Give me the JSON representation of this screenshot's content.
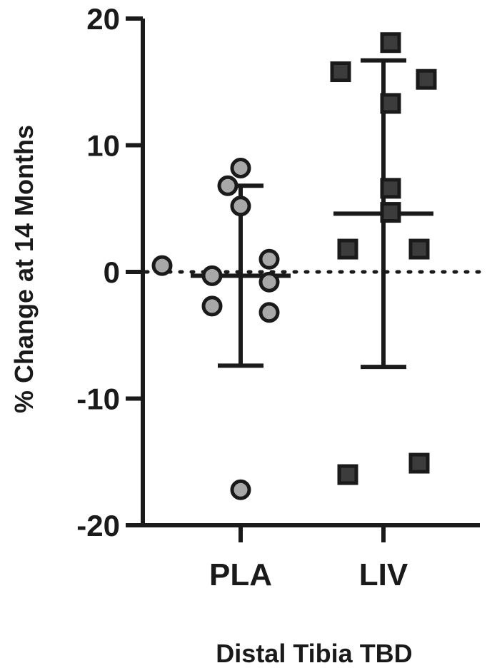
{
  "chart_data": {
    "type": "scatter",
    "xlabel": "Distal Tibia TBD",
    "ylabel": "% Change at 14 Months",
    "ylim": [
      -20,
      20
    ],
    "yticks": [
      20,
      10,
      0,
      -10,
      -20
    ],
    "ytick_labels": [
      "20",
      "10",
      "0",
      "-10",
      "-20"
    ],
    "categories": [
      "PLA",
      "LIV"
    ],
    "reference_line": {
      "y": 0,
      "style": "dotted"
    },
    "series": [
      {
        "category": "PLA",
        "marker": "circle",
        "color": "#a8a8a8",
        "mean": -0.3,
        "sd_upper": 6.8,
        "sd_lower": -7.4,
        "points": [
          {
            "offset": 0.0,
            "y": 8.2
          },
          {
            "offset": -0.09,
            "y": 6.8
          },
          {
            "offset": 0.0,
            "y": 5.2
          },
          {
            "offset": -0.55,
            "y": 0.5
          },
          {
            "offset": 0.2,
            "y": 1.0
          },
          {
            "offset": -0.2,
            "y": -0.3
          },
          {
            "offset": 0.2,
            "y": -0.8
          },
          {
            "offset": -0.2,
            "y": -2.7
          },
          {
            "offset": 0.2,
            "y": -3.2
          },
          {
            "offset": 0.0,
            "y": -17.2
          }
        ]
      },
      {
        "category": "LIV",
        "marker": "square",
        "color": "#3c3c3c",
        "mean": 4.6,
        "sd_upper": 16.7,
        "sd_lower": -7.5,
        "points": [
          {
            "offset": 0.05,
            "y": 18.1
          },
          {
            "offset": -0.3,
            "y": 15.8
          },
          {
            "offset": 0.3,
            "y": 15.2
          },
          {
            "offset": 0.05,
            "y": 13.3
          },
          {
            "offset": 0.05,
            "y": 6.6
          },
          {
            "offset": 0.05,
            "y": 4.7
          },
          {
            "offset": -0.25,
            "y": 1.8
          },
          {
            "offset": 0.25,
            "y": 1.8
          },
          {
            "offset": -0.25,
            "y": -16.0
          },
          {
            "offset": 0.25,
            "y": -15.1
          }
        ]
      }
    ]
  }
}
